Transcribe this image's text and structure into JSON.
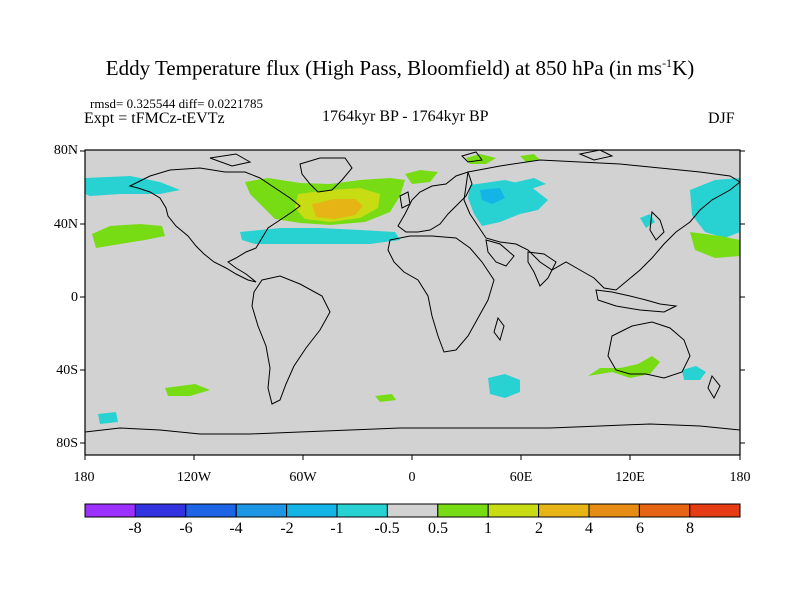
{
  "title": {
    "main": "Eddy Temperature flux (High Pass, Bloomfield) at 850 hPa (in ms",
    "sup": "-1",
    "end": "K)"
  },
  "stats": "rmsd= 0.325544 diff= 0.0221785",
  "experiment": "Expt = tFMCz-tEVTz",
  "period": "1764kyr BP - 1764kyr BP",
  "season": "DJF",
  "lat_labels": [
    "80N",
    "40N",
    "0",
    "40S",
    "80S"
  ],
  "lon_labels": [
    "180",
    "120W",
    "60W",
    "0",
    "60E",
    "120E",
    "180"
  ],
  "colorbar": {
    "labels": [
      "-8",
      "-6",
      "-4",
      "-2",
      "-1",
      "-0.5",
      "0.5",
      "1",
      "2",
      "4",
      "6",
      "8"
    ],
    "colors": [
      "#9b30ff",
      "#3232e0",
      "#1e64e6",
      "#1e96e6",
      "#14b4e6",
      "#28d2d2",
      "#d2d2d2",
      "#78dc14",
      "#c8dc14",
      "#e6b414",
      "#e68c14",
      "#e66414",
      "#e63c14"
    ]
  },
  "colors": {
    "background": "#d2d2d2",
    "negative_small": "#28d2d2",
    "positive_small": "#78dc14",
    "positive_medium": "#c8dc14",
    "positive_large": "#e6b414"
  }
}
